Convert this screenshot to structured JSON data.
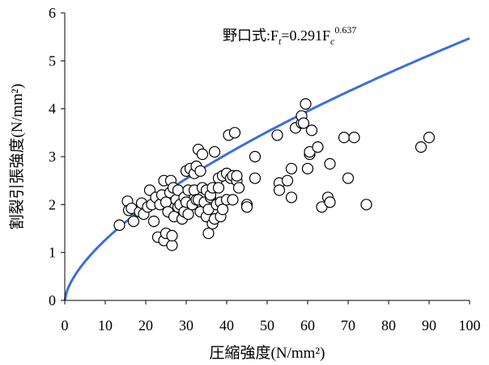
{
  "chart_data": {
    "type": "scatter",
    "title": "",
    "xlabel": "圧縮強度(N/mm²)",
    "ylabel": "割裂引張強度(N/mm²)",
    "xlim": [
      0,
      100
    ],
    "ylim": [
      0,
      6
    ],
    "x_ticks": [
      "0",
      "10",
      "20",
      "30",
      "40",
      "50",
      "60",
      "70",
      "80",
      "90",
      "100"
    ],
    "y_ticks": [
      "0",
      "1",
      "2",
      "3",
      "4",
      "5",
      "6"
    ],
    "grid": false,
    "legend": "none",
    "series": [
      {
        "marker": "open-circle",
        "points": [
          [
            13.5,
            1.57
          ],
          [
            15.5,
            2.07
          ],
          [
            15.8,
            1.88
          ],
          [
            16.5,
            1.92
          ],
          [
            17.0,
            1.65
          ],
          [
            18.5,
            1.85
          ],
          [
            19.0,
            2.03
          ],
          [
            19.5,
            1.8
          ],
          [
            20.5,
            1.95
          ],
          [
            21.0,
            2.3
          ],
          [
            21.5,
            2.0
          ],
          [
            22.0,
            1.65
          ],
          [
            22.5,
            2.15
          ],
          [
            23.0,
            1.32
          ],
          [
            23.5,
            2.0
          ],
          [
            24.0,
            2.2
          ],
          [
            24.5,
            1.25
          ],
          [
            24.5,
            2.5
          ],
          [
            25.0,
            1.4
          ],
          [
            25.0,
            2.05
          ],
          [
            25.5,
            1.85
          ],
          [
            26.0,
            2.25
          ],
          [
            26.2,
            2.5
          ],
          [
            26.5,
            1.15
          ],
          [
            26.5,
            1.35
          ],
          [
            26.8,
            2.35
          ],
          [
            27.0,
            1.75
          ],
          [
            27.5,
            2.1
          ],
          [
            28.0,
            2.3
          ],
          [
            28.0,
            1.95
          ],
          [
            28.5,
            2.0
          ],
          [
            29.0,
            1.7
          ],
          [
            29.5,
            1.85
          ],
          [
            29.5,
            2.15
          ],
          [
            30.0,
            2.05
          ],
          [
            30.0,
            2.7
          ],
          [
            30.5,
            2.3
          ],
          [
            30.5,
            1.8
          ],
          [
            31.0,
            2.75
          ],
          [
            31.5,
            2.0
          ],
          [
            32.0,
            2.3
          ],
          [
            32.0,
            2.65
          ],
          [
            32.5,
            2.1
          ],
          [
            32.5,
            2.8
          ],
          [
            33.0,
            2.1
          ],
          [
            33.0,
            3.15
          ],
          [
            33.5,
            1.85
          ],
          [
            33.5,
            2.7
          ],
          [
            34.0,
            3.05
          ],
          [
            34.0,
            2.35
          ],
          [
            34.5,
            2.05
          ],
          [
            35.0,
            1.75
          ],
          [
            35.0,
            2.3
          ],
          [
            35.5,
            1.4
          ],
          [
            35.5,
            1.9
          ],
          [
            36.0,
            2.15
          ],
          [
            36.0,
            2.2
          ],
          [
            36.5,
            1.6
          ],
          [
            36.5,
            2.35
          ],
          [
            37.0,
            3.1
          ],
          [
            37.0,
            1.7
          ],
          [
            37.5,
            2.0
          ],
          [
            38.0,
            2.55
          ],
          [
            38.0,
            2.35
          ],
          [
            38.5,
            2.05
          ],
          [
            38.5,
            1.75
          ],
          [
            39.0,
            1.9
          ],
          [
            39.0,
            2.6
          ],
          [
            40.0,
            2.1
          ],
          [
            40.0,
            2.65
          ],
          [
            40.5,
            3.45
          ],
          [
            41.0,
            2.55
          ],
          [
            41.5,
            2.6
          ],
          [
            41.5,
            2.1
          ],
          [
            42.0,
            3.5
          ],
          [
            42.5,
            2.5
          ],
          [
            42.5,
            2.6
          ],
          [
            43.0,
            2.35
          ],
          [
            45.0,
            2.0
          ],
          [
            45.0,
            1.95
          ],
          [
            47.0,
            2.55
          ],
          [
            47.0,
            3.0
          ],
          [
            52.5,
            3.45
          ],
          [
            53.0,
            2.45
          ],
          [
            53.0,
            2.3
          ],
          [
            55.0,
            2.5
          ],
          [
            56.0,
            2.75
          ],
          [
            56.0,
            2.15
          ],
          [
            57.0,
            3.6
          ],
          [
            58.5,
            3.7
          ],
          [
            58.5,
            3.85
          ],
          [
            59.0,
            3.7
          ],
          [
            59.5,
            4.1
          ],
          [
            60.0,
            2.75
          ],
          [
            60.5,
            3.05
          ],
          [
            60.5,
            3.1
          ],
          [
            61.0,
            3.55
          ],
          [
            62.5,
            3.2
          ],
          [
            63.5,
            1.95
          ],
          [
            65.0,
            2.15
          ],
          [
            65.5,
            2.05
          ],
          [
            65.5,
            2.85
          ],
          [
            69.0,
            3.4
          ],
          [
            70.0,
            2.55
          ],
          [
            71.5,
            3.4
          ],
          [
            74.5,
            2.0
          ],
          [
            88.0,
            3.2
          ],
          [
            90.0,
            3.4
          ]
        ]
      }
    ],
    "curve": {
      "label_prefix": "野口式:F",
      "label_sub1": "t",
      "label_mid": "=0.291F",
      "label_sub2": "c",
      "label_sup": "0.637",
      "coefficient": 0.291,
      "exponent": 0.637,
      "color": "#3a6fdc"
    },
    "marker_stroke": "#000000",
    "marker_fill": "#ffffff"
  }
}
